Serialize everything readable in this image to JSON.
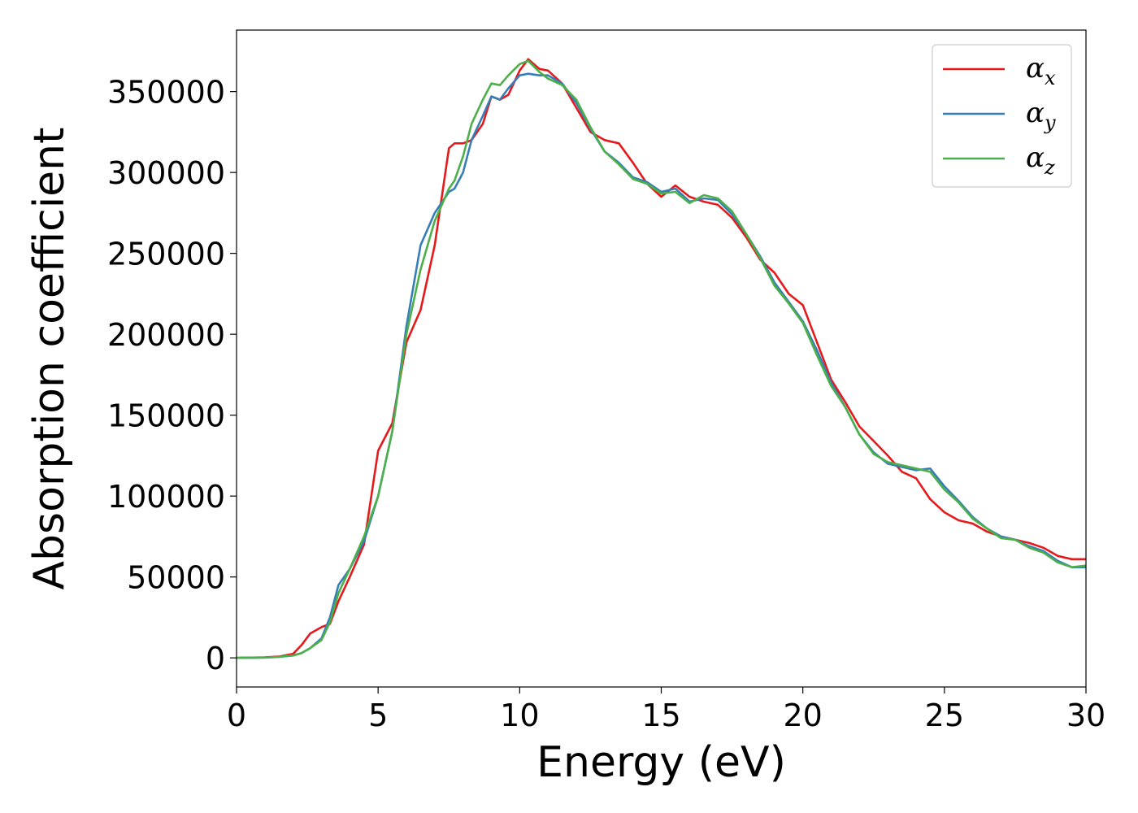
{
  "chart_data": {
    "type": "line",
    "xlabel": "Energy (eV)",
    "ylabel": "Absorption coefficient",
    "xlim": [
      0,
      30
    ],
    "ylim": [
      -18000,
      388000
    ],
    "xticks": [
      0,
      5,
      10,
      15,
      20,
      25,
      30
    ],
    "yticks": [
      0,
      50000,
      100000,
      150000,
      200000,
      250000,
      300000,
      350000
    ],
    "grid": false,
    "legend_position": "top-right",
    "series": [
      {
        "name": "α_x",
        "label_base": "α",
        "label_sub": "x",
        "color": "#e41a1c",
        "x": [
          0,
          1,
          1.5,
          2,
          2.3,
          2.6,
          3.0,
          3.3,
          3.6,
          4.0,
          4.5,
          5.0,
          5.5,
          6.0,
          6.5,
          7.0,
          7.5,
          7.7,
          8.0,
          8.3,
          8.7,
          9.0,
          9.3,
          9.6,
          10.0,
          10.3,
          10.7,
          11.0,
          11.5,
          12.0,
          12.5,
          13.0,
          13.5,
          14.0,
          14.5,
          15.0,
          15.5,
          16.0,
          16.5,
          17.0,
          17.5,
          18.0,
          18.5,
          19.0,
          19.5,
          20.0,
          20.5,
          21.0,
          21.5,
          22.0,
          22.5,
          23.0,
          23.5,
          24.0,
          24.5,
          25.0,
          25.5,
          26.0,
          26.5,
          27.0,
          27.5,
          28.0,
          28.5,
          29.0,
          29.5,
          30.0
        ],
        "y": [
          0,
          300,
          800,
          2500,
          8000,
          15000,
          19000,
          21000,
          35000,
          50000,
          70000,
          128000,
          145000,
          195000,
          215000,
          255000,
          315000,
          318000,
          318000,
          320000,
          330000,
          347000,
          345000,
          348000,
          363000,
          370000,
          364000,
          363000,
          355000,
          340000,
          325000,
          320000,
          318000,
          306000,
          293000,
          285000,
          292000,
          285000,
          282000,
          280000,
          272000,
          260000,
          246000,
          238000,
          225000,
          218000,
          195000,
          172000,
          158000,
          143000,
          134000,
          125000,
          115000,
          111000,
          98000,
          90000,
          85000,
          83000,
          78000,
          75000,
          73000,
          71000,
          68000,
          63000,
          61000,
          61000
        ]
      },
      {
        "name": "α_y",
        "label_base": "α",
        "label_sub": "y",
        "color": "#377eb8",
        "x": [
          0,
          1,
          1.5,
          2,
          2.3,
          2.6,
          3.0,
          3.3,
          3.6,
          4.0,
          4.5,
          5.0,
          5.5,
          6.0,
          6.5,
          7.0,
          7.5,
          7.7,
          8.0,
          8.3,
          8.7,
          9.0,
          9.3,
          9.6,
          10.0,
          10.3,
          10.7,
          11.0,
          11.5,
          12.0,
          12.5,
          13.0,
          13.5,
          14.0,
          14.5,
          15.0,
          15.5,
          16.0,
          16.5,
          17.0,
          17.5,
          18.0,
          18.5,
          19.0,
          19.5,
          20.0,
          20.5,
          21.0,
          21.5,
          22.0,
          22.5,
          23.0,
          23.5,
          24.0,
          24.5,
          25.0,
          25.5,
          26.0,
          26.5,
          27.0,
          27.5,
          28.0,
          28.5,
          29.0,
          29.5,
          30.0
        ],
        "y": [
          0,
          200,
          600,
          1500,
          3000,
          6000,
          12000,
          25000,
          45000,
          55000,
          72000,
          100000,
          140000,
          205000,
          255000,
          275000,
          288000,
          290000,
          300000,
          320000,
          335000,
          347000,
          345000,
          352000,
          360000,
          361000,
          360000,
          360000,
          355000,
          343000,
          327000,
          313000,
          306000,
          297000,
          294000,
          288000,
          290000,
          282000,
          284000,
          283000,
          274000,
          262000,
          248000,
          232000,
          220000,
          208000,
          190000,
          170000,
          155000,
          138000,
          127000,
          120000,
          118000,
          116000,
          117000,
          106000,
          97000,
          87000,
          80000,
          75000,
          73000,
          69000,
          66000,
          60000,
          56000,
          56000
        ]
      },
      {
        "name": "α_z",
        "label_base": "α",
        "label_sub": "z",
        "color": "#4daf4a",
        "x": [
          0,
          1,
          1.5,
          2,
          2.3,
          2.6,
          3.0,
          3.3,
          3.6,
          4.0,
          4.5,
          5.0,
          5.5,
          6.0,
          6.5,
          7.0,
          7.5,
          7.7,
          8.0,
          8.3,
          8.7,
          9.0,
          9.3,
          9.6,
          10.0,
          10.3,
          10.7,
          11.0,
          11.5,
          12.0,
          12.5,
          13.0,
          13.5,
          14.0,
          14.5,
          15.0,
          15.5,
          16.0,
          16.5,
          17.0,
          17.5,
          18.0,
          18.5,
          19.0,
          19.5,
          20.0,
          20.5,
          21.0,
          21.5,
          22.0,
          22.5,
          23.0,
          23.5,
          24.0,
          24.5,
          25.0,
          25.5,
          26.0,
          26.5,
          27.0,
          27.5,
          28.0,
          28.5,
          29.0,
          29.5,
          30.0
        ],
        "y": [
          0,
          200,
          600,
          1500,
          3000,
          6000,
          11000,
          22000,
          40000,
          55000,
          75000,
          100000,
          140000,
          200000,
          240000,
          270000,
          290000,
          295000,
          310000,
          330000,
          345000,
          355000,
          354000,
          360000,
          367000,
          369000,
          362000,
          358000,
          354000,
          345000,
          328000,
          313000,
          305000,
          296000,
          293000,
          287000,
          288000,
          281000,
          286000,
          284000,
          276000,
          262000,
          247000,
          230000,
          219000,
          207000,
          187000,
          168000,
          155000,
          138000,
          126000,
          121000,
          119000,
          117000,
          115000,
          104000,
          96000,
          86000,
          80000,
          74000,
          73000,
          68000,
          65000,
          59000,
          56000,
          57000
        ]
      }
    ]
  }
}
